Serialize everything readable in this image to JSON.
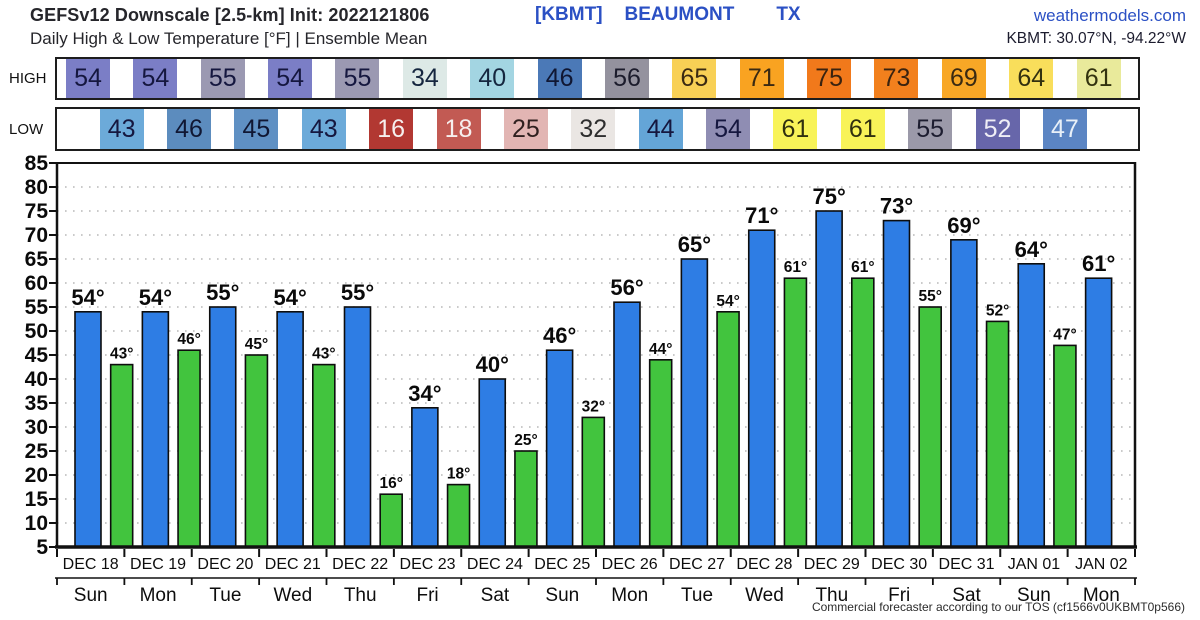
{
  "header": {
    "title": "GEFSv12 Downscale [2.5-km] Init: 2022121806",
    "subtitle": "Daily High & Low Temperature [°F] | Ensemble Mean",
    "station_code": "[KBMT]",
    "city": "BEAUMONT",
    "state": "TX",
    "site": "weathermodels.com",
    "coords": "KBMT: 30.07°N, -94.22°W",
    "accent_blue": "#2b50c4",
    "text_dark": "#26262b"
  },
  "strips": {
    "high_label": "HIGH",
    "low_label": "LOW",
    "high_cells": [
      {
        "value": 54,
        "bg": "#7b7ec6",
        "fg": "#15173f"
      },
      {
        "value": 54,
        "bg": "#7b7ec6",
        "fg": "#15173f"
      },
      {
        "value": 55,
        "bg": "#9b99b2",
        "fg": "#15173f"
      },
      {
        "value": 54,
        "bg": "#7b7ec6",
        "fg": "#15173f"
      },
      {
        "value": 55,
        "bg": "#9b99b2",
        "fg": "#15173f"
      },
      {
        "value": 34,
        "bg": "#dde9e6",
        "fg": "#15263f"
      },
      {
        "value": 40,
        "bg": "#a3d5e2",
        "fg": "#15263f"
      },
      {
        "value": 46,
        "bg": "#4b79b7",
        "fg": "#101733"
      },
      {
        "value": 56,
        "bg": "#94929e",
        "fg": "#1c1c2c"
      },
      {
        "value": 65,
        "bg": "#f8d055",
        "fg": "#3a2a12"
      },
      {
        "value": 71,
        "bg": "#f9a321",
        "fg": "#3a2a12"
      },
      {
        "value": 75,
        "bg": "#f1791b",
        "fg": "#3a2310"
      },
      {
        "value": 73,
        "bg": "#f2801d",
        "fg": "#3a2310"
      },
      {
        "value": 69,
        "bg": "#f8a726",
        "fg": "#3a2a12"
      },
      {
        "value": 64,
        "bg": "#f9de5b",
        "fg": "#33300f"
      },
      {
        "value": 61,
        "bg": "#e9ea9b",
        "fg": "#33330f"
      }
    ],
    "low_cells": [
      {
        "value": 43,
        "bg": "#6caad9",
        "fg": "#15173f"
      },
      {
        "value": 46,
        "bg": "#5c8cbe",
        "fg": "#101733"
      },
      {
        "value": 45,
        "bg": "#5f90c3",
        "fg": "#101733"
      },
      {
        "value": 43,
        "bg": "#6caad9",
        "fg": "#15173f"
      },
      {
        "value": 16,
        "bg": "#b23832",
        "fg": "#f6efee"
      },
      {
        "value": 18,
        "bg": "#c25a53",
        "fg": "#f6efee"
      },
      {
        "value": 25,
        "bg": "#e2b5b3",
        "fg": "#30201f"
      },
      {
        "value": 32,
        "bg": "#eae6e3",
        "fg": "#2e2e2e"
      },
      {
        "value": 44,
        "bg": "#64a5d7",
        "fg": "#15173f"
      },
      {
        "value": 54,
        "bg": "#8f8db3",
        "fg": "#15173f"
      },
      {
        "value": 61,
        "bg": "#f8f358",
        "fg": "#30300f"
      },
      {
        "value": 61,
        "bg": "#f8f358",
        "fg": "#30300f"
      },
      {
        "value": 55,
        "bg": "#9b99a9",
        "fg": "#1d1d30"
      },
      {
        "value": 52,
        "bg": "#6766aa",
        "fg": "#efeef6"
      },
      {
        "value": 47,
        "bg": "#5b85c3",
        "fg": "#e8f0f8"
      }
    ]
  },
  "chart_data": {
    "type": "bar",
    "title": "Daily High & Low Temperature [°F] | Ensemble Mean",
    "categories": [
      "DEC 18",
      "DEC 19",
      "DEC 20",
      "DEC 21",
      "DEC 22",
      "DEC 23",
      "DEC 24",
      "DEC 25",
      "DEC 26",
      "DEC 27",
      "DEC 28",
      "DEC 29",
      "DEC 30",
      "DEC 31",
      "JAN 01",
      "JAN 02"
    ],
    "weekdays": [
      "Sun",
      "Mon",
      "Tue",
      "Wed",
      "Thu",
      "Fri",
      "Sat",
      "Sun",
      "Mon",
      "Tue",
      "Wed",
      "Thu",
      "Fri",
      "Sat",
      "Sun",
      "Mon"
    ],
    "series": [
      {
        "name": "High",
        "color": "#2e7de4",
        "values": [
          54,
          54,
          55,
          54,
          55,
          34,
          40,
          46,
          56,
          65,
          71,
          75,
          73,
          69,
          64,
          61
        ]
      },
      {
        "name": "Low",
        "color": "#42c43e",
        "values": [
          43,
          46,
          45,
          43,
          16,
          18,
          25,
          32,
          44,
          54,
          61,
          61,
          55,
          52,
          47,
          null
        ]
      }
    ],
    "xlabel": "",
    "ylabel": "",
    "ylim": [
      5,
      85
    ],
    "ytick_step": 5,
    "grid": "dotted-horizontal",
    "legend": "none",
    "bar_label_suffix": "°",
    "bar_outline": "#0d0d0d",
    "grid_color": "#b8b8b8"
  },
  "footer": {
    "note": "Commercial forecaster according to our TOS (cf1566v0UKBMT0p566)"
  }
}
